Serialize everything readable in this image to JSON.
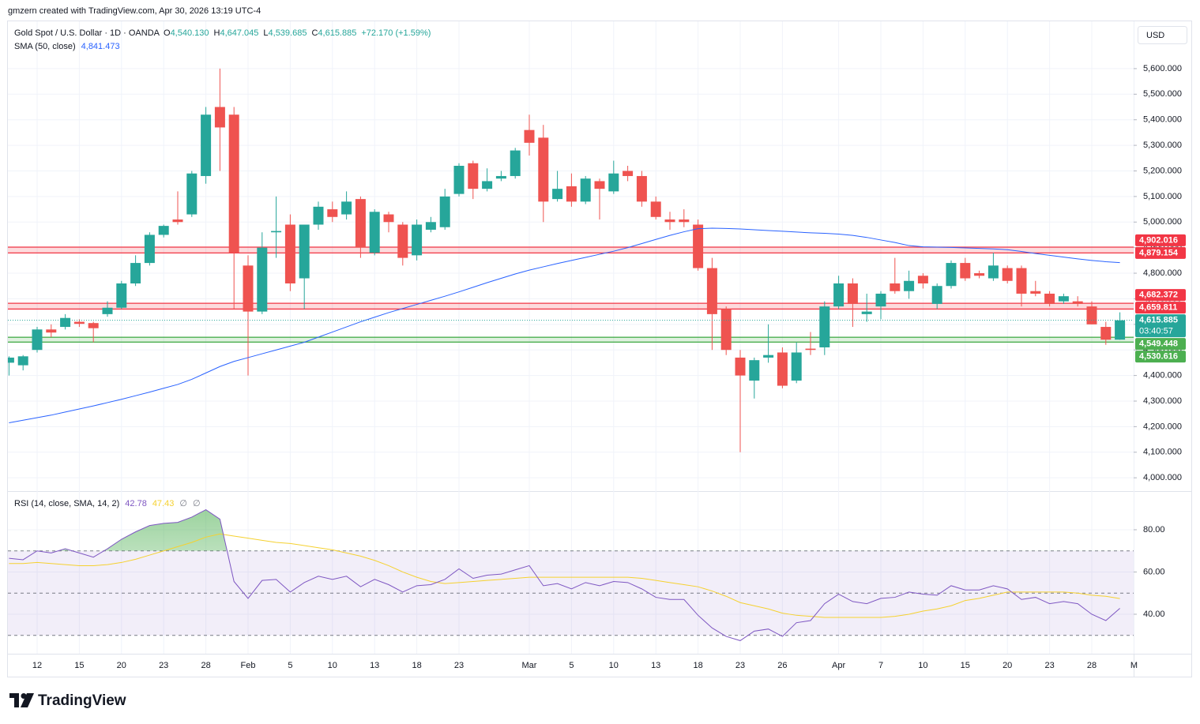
{
  "attribution": "gmzern created with TradingView.com, Apr 30, 2026 13:19 UTC-4",
  "currency": "USD",
  "footer": {
    "logo": "TradingView"
  },
  "chart_data": [
    {
      "type": "candlestick",
      "title": "Gold Spot / U.S. Dollar · 1D · OANDA",
      "legend": {
        "ohlc": [
          {
            "key": "O",
            "value": "4,540.130"
          },
          {
            "key": "H",
            "value": "4,647.045"
          },
          {
            "key": "L",
            "value": "4,539.685"
          },
          {
            "key": "C",
            "value": "4,615.885"
          }
        ],
        "change": "+72.170 (+1.59%)"
      },
      "categories": [
        null,
        null,
        "12",
        null,
        null,
        "15",
        null,
        null,
        "20",
        null,
        null,
        "23",
        null,
        null,
        "28",
        null,
        null,
        "Feb",
        null,
        null,
        "5",
        null,
        null,
        "10",
        null,
        null,
        "13",
        null,
        null,
        "18",
        null,
        null,
        "23",
        null,
        null,
        null,
        null,
        "Mar",
        null,
        null,
        "5",
        null,
        null,
        "10",
        null,
        null,
        "13",
        null,
        null,
        "18",
        null,
        null,
        "23",
        null,
        null,
        "26",
        null,
        null,
        null,
        "Apr",
        null,
        null,
        "7",
        null,
        null,
        "10",
        null,
        null,
        "15",
        null,
        null,
        "20",
        null,
        null,
        "23",
        null,
        null,
        "28",
        null,
        null,
        "M"
      ],
      "open": [
        4450,
        4440,
        4500,
        4580,
        4590,
        4610,
        4605,
        4640,
        4665,
        4760,
        4840,
        4950,
        5010,
        5030,
        5180,
        5450,
        5420,
        4830,
        4650,
        4960,
        4990,
        4780,
        4990,
        5050,
        5030,
        5090,
        4880,
        5030,
        4990,
        4870,
        4970,
        4980,
        5110,
        5230,
        5130,
        5170,
        5180,
        5360,
        5330,
        5090,
        5140,
        5080,
        5160,
        5120,
        5200,
        5180,
        5080,
        5010,
        5010,
        4990,
        4820,
        4660,
        4470,
        4380,
        4470,
        4490,
        4380,
        4505,
        4510,
        4670,
        4760,
        4640,
        4670,
        4760,
        4730,
        4790,
        4680,
        4750,
        4840,
        4800,
        4780,
        4820,
        4820,
        4730,
        4720,
        4690,
        4690,
        4670,
        4590,
        4540.13,
        null
      ],
      "high": [
        4475,
        4480,
        4590,
        4600,
        4640,
        4620,
        4610,
        4690,
        4770,
        4870,
        4960,
        4990,
        5120,
        5200,
        5450,
        5600,
        5450,
        4870,
        4960,
        5100,
        5030,
        4990,
        5080,
        5080,
        5120,
        5100,
        5050,
        5040,
        5000,
        5010,
        5020,
        5130,
        5230,
        5240,
        5210,
        5200,
        5290,
        5420,
        5380,
        5200,
        5190,
        5180,
        5170,
        5240,
        5220,
        5200,
        5100,
        5040,
        5050,
        5010,
        4860,
        4670,
        4500,
        4470,
        4600,
        4510,
        4530,
        4570,
        4690,
        4790,
        4780,
        4720,
        4730,
        4860,
        4810,
        4800,
        4760,
        4850,
        4860,
        4810,
        4880,
        4830,
        4830,
        4770,
        4730,
        4720,
        4710,
        4690,
        4610,
        4647.045,
        null
      ],
      "low": [
        4400,
        4420,
        4490,
        4550,
        4580,
        4590,
        4530,
        4630,
        4660,
        4750,
        4830,
        4940,
        4990,
        5020,
        5150,
        5200,
        4660,
        4400,
        4640,
        4860,
        4730,
        4660,
        4970,
        5000,
        5010,
        4860,
        4870,
        4960,
        4830,
        4850,
        4960,
        4970,
        5100,
        5090,
        5120,
        5160,
        5170,
        5260,
        5000,
        5080,
        5060,
        5070,
        5010,
        5110,
        5160,
        5060,
        5010,
        4970,
        4980,
        4810,
        4500,
        4480,
        4100,
        4310,
        4450,
        4350,
        4370,
        4480,
        4480,
        4660,
        4590,
        4610,
        4620,
        4720,
        4700,
        4740,
        4660,
        4740,
        4770,
        4780,
        4770,
        4760,
        4670,
        4710,
        4670,
        4680,
        4670,
        4600,
        4520,
        4539.685,
        null
      ],
      "close": [
        4470,
        4475,
        4580,
        4568,
        4625,
        4602,
        4585,
        4665,
        4760,
        4840,
        4950,
        4985,
        5000,
        5190,
        5420,
        5370,
        4880,
        4650,
        4900,
        4965,
        4760,
        4990,
        5060,
        5020,
        5080,
        4900,
        5040,
        5000,
        4860,
        4990,
        5000,
        5100,
        5220,
        5130,
        5160,
        5180,
        5280,
        5310,
        5080,
        5130,
        5080,
        5170,
        5130,
        5190,
        5180,
        5080,
        5020,
        5000,
        5000,
        4820,
        4640,
        4500,
        4400,
        4460,
        4480,
        4360,
        4490,
        4500,
        4670,
        4760,
        4680,
        4650,
        4720,
        4730,
        4770,
        4760,
        4750,
        4840,
        4780,
        4790,
        4830,
        4770,
        4720,
        4720,
        4680,
        4710,
        4680,
        4600,
        4540,
        4615.885,
        null
      ],
      "colors": {
        "up": "#26a69a",
        "down": "#ef5350"
      },
      "overlays": [
        {
          "name": "SMA (50, close)",
          "value_label": "4,841.473",
          "color": "#2962ff",
          "values": [
            4215,
            4225,
            4235,
            4245,
            4257,
            4269,
            4281,
            4294,
            4307,
            4321,
            4335,
            4350,
            4365,
            4385,
            4410,
            4435,
            4455,
            4470,
            4485,
            4500,
            4515,
            4530,
            4550,
            4570,
            4590,
            4610,
            4628,
            4646,
            4662,
            4678,
            4694,
            4710,
            4727,
            4745,
            4763,
            4780,
            4797,
            4812,
            4825,
            4838,
            4850,
            4862,
            4874,
            4886,
            4900,
            4916,
            4932,
            4948,
            4962,
            4974,
            4976,
            4975,
            4973,
            4970,
            4967,
            4964,
            4961,
            4958,
            4956,
            4953,
            4948,
            4940,
            4930,
            4920,
            4908,
            4903,
            4902,
            4901,
            4899,
            4897,
            4895,
            4892,
            4885,
            4877,
            4870,
            4863,
            4856,
            4850,
            4845,
            4841.473,
            null
          ]
        }
      ],
      "zones": [
        {
          "color": "#f23645",
          "levels": [
            {
              "value": 4902.016,
              "label": "4,902.016"
            },
            {
              "value": 4879.154,
              "label": "4,879.154"
            }
          ]
        },
        {
          "color": "#f23645",
          "levels": [
            {
              "value": 4682.372,
              "label": "4,682.372"
            },
            {
              "value": 4659.811,
              "label": "4,659.811"
            }
          ]
        },
        {
          "color": "#4caf50",
          "levels": [
            {
              "value": 4549.448,
              "label": "4,549.448"
            },
            {
              "value": 4530.616,
              "label": "4,530.616"
            }
          ]
        }
      ],
      "last_price": {
        "value": 4615.885,
        "label": "4,615.885",
        "countdown": "03:40:57",
        "color": "#26a69a"
      },
      "ylim": [
        3948,
        5785
      ],
      "yticks": [
        {
          "value": 4000,
          "label": "4,000.000"
        },
        {
          "value": 4100,
          "label": "4,100.000"
        },
        {
          "value": 4200,
          "label": "4,200.000"
        },
        {
          "value": 4300,
          "label": "4,300.000"
        },
        {
          "value": 4400,
          "label": "4,400.000"
        },
        {
          "value": 4500,
          "label": "4,500.000"
        },
        {
          "value": 4600,
          "label": "4,600.000"
        },
        {
          "value": 4700,
          "label": "4,700.000"
        },
        {
          "value": 4800,
          "label": "4,800.000"
        },
        {
          "value": 4900,
          "label": "4,900.000"
        },
        {
          "value": 5000,
          "label": "5,000.000"
        },
        {
          "value": 5100,
          "label": "5,100.000"
        },
        {
          "value": 5200,
          "label": "5,200.000"
        },
        {
          "value": 5300,
          "label": "5,300.000"
        },
        {
          "value": 5400,
          "label": "5,400.000"
        },
        {
          "value": 5500,
          "label": "5,500.000"
        },
        {
          "value": 5600,
          "label": "5,600.000"
        }
      ],
      "grid": true
    },
    {
      "type": "line",
      "title": "RSI (14, close, SMA, 14, 2)",
      "extras": [
        "∅",
        "∅"
      ],
      "series": [
        {
          "color": "#7e57c2",
          "value_label": "42.78",
          "values": [
            66.5,
            65.8,
            70,
            69,
            71,
            69,
            67,
            71,
            75.5,
            79,
            82,
            83,
            83.5,
            86,
            89.5,
            85,
            55.5,
            47.5,
            56,
            56.5,
            50.5,
            55,
            58,
            56.5,
            58,
            53,
            56.5,
            54,
            50.5,
            53.5,
            54,
            56.5,
            61.5,
            57,
            58.5,
            59,
            61,
            63,
            53.5,
            54.5,
            52,
            55,
            53.5,
            55.5,
            55,
            52,
            48,
            47,
            47,
            39.5,
            33.5,
            29.5,
            27.5,
            32,
            33,
            29.5,
            36,
            37,
            45,
            49.5,
            46,
            45,
            47.5,
            48,
            50.5,
            49.5,
            49,
            53.5,
            51.5,
            51.5,
            53.5,
            52,
            47,
            48,
            45,
            46,
            45,
            40,
            37,
            42.78,
            null
          ]
        },
        {
          "color": "#f5d130",
          "value_label": "47.43",
          "values": [
            64,
            64,
            64.5,
            64,
            63.5,
            63,
            63,
            63.5,
            64.5,
            66,
            68,
            70,
            72,
            74,
            76.5,
            78,
            77,
            76,
            75,
            74,
            73.5,
            72.5,
            71.5,
            70.5,
            69,
            67.5,
            65.5,
            63,
            60,
            57.5,
            55.5,
            54.5,
            55,
            55.5,
            56,
            56.5,
            57,
            57.5,
            57.5,
            57.5,
            57.5,
            57.5,
            57.5,
            57.5,
            57.5,
            57,
            56,
            55,
            54,
            53,
            51,
            48.5,
            45.5,
            44,
            42.5,
            40.5,
            39.5,
            39,
            38.5,
            38.5,
            38.5,
            38.5,
            38.5,
            39,
            40,
            41.5,
            42.5,
            44,
            46.5,
            47.5,
            49,
            50.5,
            50.5,
            50.5,
            50.5,
            50.5,
            50,
            49,
            48.5,
            47.43,
            null
          ]
        }
      ],
      "hlines": [
        70,
        50,
        30
      ],
      "band_color": "#7e57c2",
      "overbought_color": "#4caf50",
      "ylim": [
        21.3,
        98.3
      ],
      "yticks": [
        {
          "value": 40,
          "label": "40.00"
        },
        {
          "value": 60,
          "label": "60.00"
        },
        {
          "value": 80,
          "label": "80.00"
        }
      ],
      "grid": true
    }
  ]
}
